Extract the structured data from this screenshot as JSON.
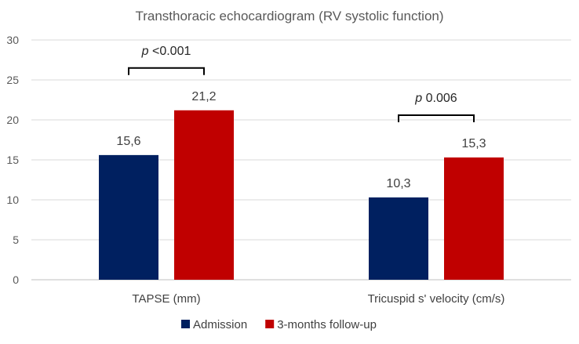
{
  "chart_data": {
    "type": "bar",
    "title": "Transthoracic echocardiogram (RV systolic function)",
    "categories": [
      "TAPSE (mm)",
      "Tricuspid s' velocity (cm/s)"
    ],
    "series": [
      {
        "name": "Admission",
        "values": [
          15.6,
          10.3
        ],
        "labels": [
          "15,6",
          "10,3"
        ],
        "color": "#002060"
      },
      {
        "name": "3-months follow-up",
        "values": [
          21.2,
          15.3
        ],
        "labels": [
          "21,2",
          "15,3"
        ],
        "color": "#c00000"
      }
    ],
    "ylim": [
      0,
      30
    ],
    "yticks": [
      0,
      5,
      10,
      15,
      20,
      25,
      30
    ],
    "grid": true,
    "legend_position": "bottom",
    "annotations": [
      {
        "category": "TAPSE (mm)",
        "italic": "p",
        "text": " <0.001"
      },
      {
        "category": "Tricuspid s' velocity (cm/s)",
        "italic": "p",
        "text": " 0.006"
      }
    ]
  }
}
